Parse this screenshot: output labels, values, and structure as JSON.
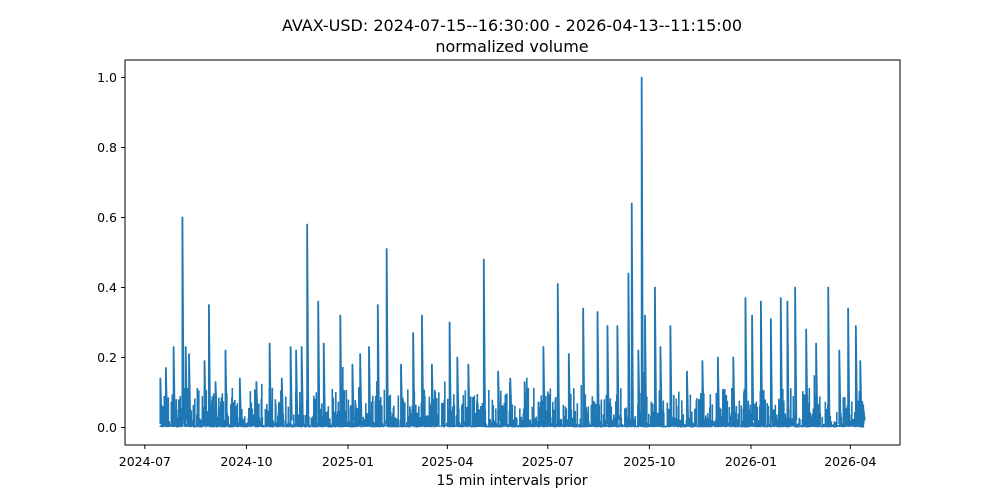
{
  "chart_data": {
    "type": "line",
    "title": "AVAX-USD: 2024-07-15--16:30:00 - 2026-04-13--11:15:00",
    "subtitle": "normalized volume",
    "xlabel": "15 min intervals prior",
    "ylabel": "",
    "x_range": [
      "2024-07-15",
      "2026-04-13"
    ],
    "xlim": [
      "2024-06-13",
      "2026-05-16"
    ],
    "ylim": [
      -0.05,
      1.05
    ],
    "x_ticks": [
      "2024-07",
      "2024-10",
      "2025-01",
      "2025-04",
      "2025-07",
      "2025-10",
      "2026-01",
      "2026-04"
    ],
    "y_ticks": [
      "0.0",
      "0.2",
      "0.4",
      "0.6",
      "0.8",
      "1.0"
    ],
    "grid": false,
    "series_color": "#1f77b4",
    "series": [
      {
        "x": [
          "2024-07-15",
          "2024-07-20",
          "2024-07-27",
          "2024-08-04",
          "2024-08-07",
          "2024-08-10",
          "2024-08-24",
          "2024-08-28",
          "2024-09-03",
          "2024-09-12",
          "2024-09-25",
          "2024-10-10",
          "2024-10-22",
          "2024-11-02",
          "2024-11-10",
          "2024-11-15",
          "2024-11-20",
          "2024-11-25",
          "2024-12-05",
          "2024-12-10",
          "2024-12-25",
          "2025-01-05",
          "2025-01-12",
          "2025-01-20",
          "2025-01-28",
          "2025-02-05",
          "2025-02-18",
          "2025-03-01",
          "2025-03-09",
          "2025-03-18",
          "2025-04-03",
          "2025-04-10",
          "2025-04-20",
          "2025-05-04",
          "2025-05-17",
          "2025-05-28",
          "2025-06-10",
          "2025-06-27",
          "2025-07-10",
          "2025-07-20",
          "2025-08-02",
          "2025-08-15",
          "2025-08-24",
          "2025-09-02",
          "2025-09-12",
          "2025-09-15",
          "2025-09-21",
          "2025-09-24",
          "2025-09-27",
          "2025-10-06",
          "2025-10-11",
          "2025-10-20",
          "2025-11-04",
          "2025-11-18",
          "2025-12-02",
          "2025-12-16",
          "2025-12-27",
          "2026-01-02",
          "2026-01-10",
          "2026-01-19",
          "2026-01-28",
          "2026-02-03",
          "2026-02-10",
          "2026-02-20",
          "2026-03-01",
          "2026-03-12",
          "2026-03-22",
          "2026-03-30",
          "2026-04-06",
          "2026-04-10",
          "2026-04-13"
        ],
        "y": [
          0.14,
          0.17,
          0.23,
          0.6,
          0.23,
          0.21,
          0.19,
          0.35,
          0.13,
          0.22,
          0.14,
          0.13,
          0.24,
          0.14,
          0.23,
          0.22,
          0.23,
          0.58,
          0.36,
          0.24,
          0.32,
          0.18,
          0.21,
          0.23,
          0.35,
          0.51,
          0.18,
          0.27,
          0.32,
          0.18,
          0.3,
          0.2,
          0.18,
          0.48,
          0.16,
          0.14,
          0.13,
          0.23,
          0.41,
          0.21,
          0.34,
          0.33,
          0.29,
          0.29,
          0.44,
          0.64,
          0.22,
          1.0,
          0.32,
          0.4,
          0.23,
          0.29,
          0.16,
          0.19,
          0.2,
          0.2,
          0.37,
          0.32,
          0.36,
          0.31,
          0.37,
          0.36,
          0.4,
          0.28,
          0.24,
          0.4,
          0.22,
          0.34,
          0.29,
          0.19,
          0.05
        ]
      }
    ]
  }
}
